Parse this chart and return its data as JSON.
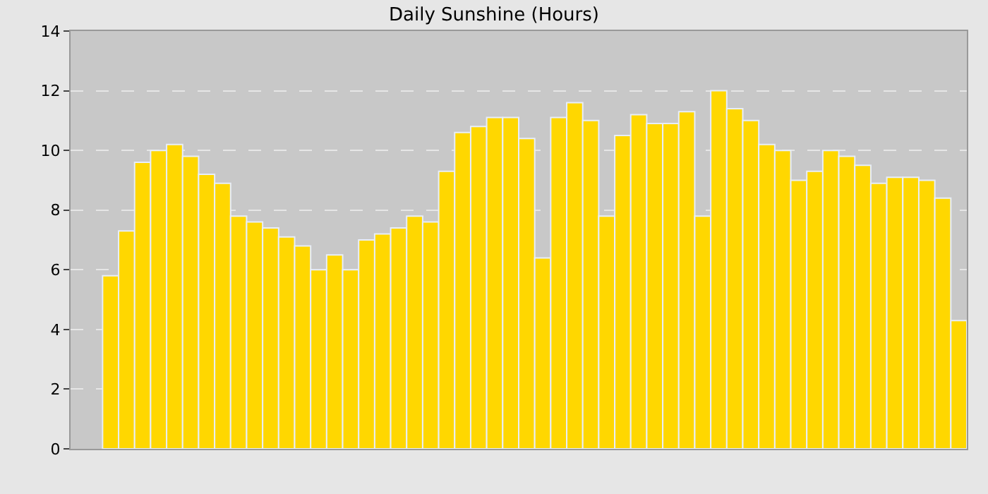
{
  "chart_data": {
    "type": "bar",
    "title": "Daily Sunshine (Hours)",
    "categories": [
      null,
      null,
      null,
      null,
      null,
      null,
      null,
      null,
      null,
      null,
      null,
      null,
      null,
      null,
      null,
      null,
      null,
      null,
      null,
      null,
      null,
      null,
      null,
      null,
      null,
      null,
      null,
      null,
      null,
      null,
      null,
      null,
      null,
      null,
      null,
      null,
      null,
      null,
      null,
      null,
      null,
      null,
      null,
      null,
      null,
      null,
      null,
      null,
      null,
      null,
      null,
      null,
      null,
      null
    ],
    "values": [
      5.8,
      7.3,
      9.6,
      10.0,
      10.2,
      9.8,
      9.2,
      8.9,
      7.8,
      7.6,
      7.4,
      7.1,
      6.8,
      6.0,
      6.5,
      6.0,
      7.0,
      7.2,
      7.4,
      7.8,
      7.6,
      9.3,
      10.6,
      10.8,
      11.1,
      11.1,
      10.4,
      6.4,
      11.1,
      11.6,
      11.0,
      7.8,
      10.5,
      11.2,
      10.9,
      10.9,
      11.3,
      7.8,
      12.0,
      11.4,
      11.0,
      10.2,
      10.0,
      9.0,
      9.3,
      10.0,
      9.8,
      9.5,
      8.9,
      9.1,
      9.1,
      9.0,
      8.4,
      4.3
    ],
    "color": "#ffd700",
    "ylim": [
      0,
      14
    ],
    "yticks": [
      0,
      2,
      4,
      6,
      8,
      10,
      12,
      14
    ],
    "grid": "y",
    "tick_labels": "y"
  }
}
